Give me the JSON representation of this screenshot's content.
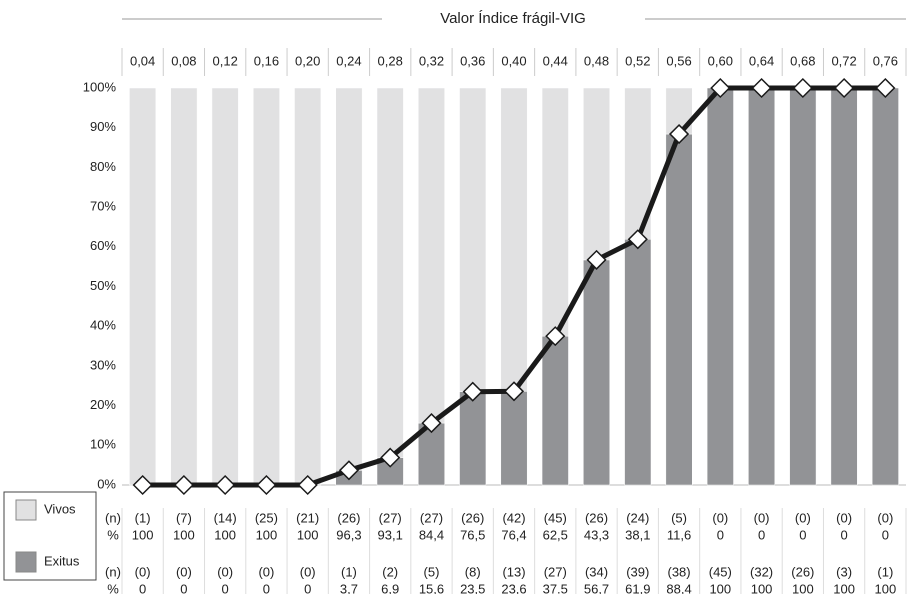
{
  "chart_data": {
    "type": "bar",
    "stacked": true,
    "title": "Valor Índice frágil-VIG",
    "categories": [
      "0,04",
      "0,08",
      "0,12",
      "0,16",
      "0,20",
      "0,24",
      "0,28",
      "0,32",
      "0,36",
      "0,40",
      "0,44",
      "0,48",
      "0,52",
      "0,56",
      "0,60",
      "0,64",
      "0,68",
      "0,72",
      "0,76"
    ],
    "ylim": [
      0,
      100
    ],
    "yticks": [
      {
        "value": 0,
        "label": "0%"
      },
      {
        "value": 10,
        "label": "10%"
      },
      {
        "value": 20,
        "label": "20%"
      },
      {
        "value": 30,
        "label": "30%"
      },
      {
        "value": 40,
        "label": "40%"
      },
      {
        "value": 50,
        "label": "50%"
      },
      {
        "value": 60,
        "label": "60%"
      },
      {
        "value": 70,
        "label": "70%"
      },
      {
        "value": 80,
        "label": "80%"
      },
      {
        "value": 90,
        "label": "90%"
      },
      {
        "value": 100,
        "label": "100%"
      }
    ],
    "row_labels": {
      "count": "(n)",
      "percent": "%"
    },
    "line": {
      "series": 0,
      "color": "#1a1a1a"
    },
    "series": [
      {
        "name": "Exitus",
        "color": "#929396",
        "values": [
          0,
          0,
          0,
          0,
          0,
          3.7,
          6.9,
          15.6,
          23.5,
          23.6,
          37.5,
          56.7,
          61.9,
          88.4,
          100,
          100,
          100,
          100,
          100
        ],
        "value_labels": [
          "0",
          "0",
          "0",
          "0",
          "0",
          "3,7",
          "6,9",
          "15,6",
          "23,5",
          "23,6",
          "37.5",
          "56,7",
          "61,9",
          "88,4",
          "100",
          "100",
          "100",
          "100",
          "100"
        ],
        "counts": [
          0,
          0,
          0,
          0,
          0,
          1,
          2,
          5,
          8,
          13,
          27,
          34,
          39,
          38,
          45,
          32,
          26,
          3,
          1
        ],
        "count_labels": [
          "(0)",
          "(0)",
          "(0)",
          "(0)",
          "(0)",
          "(1)",
          "(2)",
          "(5)",
          "(8)",
          "(13)",
          "(27)",
          "(34)",
          "(39)",
          "(38)",
          "(45)",
          "(32)",
          "(26)",
          "(3)",
          "(1)"
        ]
      },
      {
        "name": "Vivos",
        "color": "#e1e1e2",
        "values": [
          100,
          100,
          100,
          100,
          100,
          96.3,
          93.1,
          84.4,
          76.5,
          76.4,
          62.5,
          43.3,
          38.1,
          11.6,
          0,
          0,
          0,
          0,
          0
        ],
        "value_labels": [
          "100",
          "100",
          "100",
          "100",
          "100",
          "96,3",
          "93,1",
          "84,4",
          "76,5",
          "76,4",
          "62,5",
          "43,3",
          "38,1",
          "11,6",
          "0",
          "0",
          "0",
          "0",
          "0"
        ],
        "counts": [
          1,
          7,
          14,
          25,
          21,
          26,
          27,
          27,
          26,
          42,
          45,
          26,
          24,
          5,
          0,
          0,
          0,
          0,
          0
        ],
        "count_labels": [
          "(1)",
          "(7)",
          "(14)",
          "(25)",
          "(21)",
          "(26)",
          "(27)",
          "(27)",
          "(26)",
          "(42)",
          "(45)",
          "(26)",
          "(24)",
          "(5)",
          "(0)",
          "(0)",
          "(0)",
          "(0)",
          "(0)"
        ]
      }
    ]
  }
}
